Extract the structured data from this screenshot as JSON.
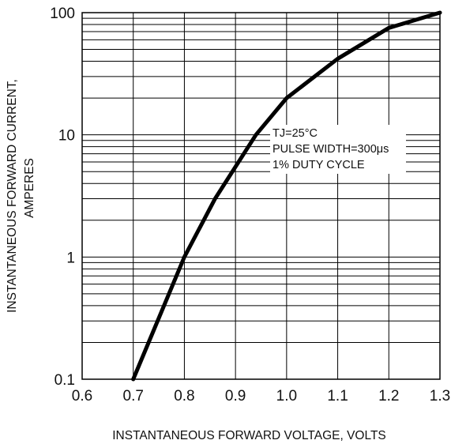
{
  "chart_data": {
    "type": "line",
    "xlabel": "INSTANTANEOUS FORWARD VOLTAGE, VOLTS",
    "ylabel_line1": "INSTANTANEOUS FORWARD CURRENT,",
    "ylabel_line2": "AMPERES",
    "x_scale": "linear",
    "y_scale": "log",
    "xlim": [
      0.6,
      1.3
    ],
    "ylim": [
      0.1,
      100
    ],
    "grid": true,
    "x_ticks": [
      0.6,
      0.7,
      0.8,
      0.9,
      1.0,
      1.1,
      1.2,
      1.3
    ],
    "x_tick_labels": [
      "0.6",
      "0.7",
      "0.8",
      "0.9",
      "1.0",
      "1.1",
      "1.2",
      "1.3"
    ],
    "y_ticks": [
      0.1,
      1,
      10,
      100
    ],
    "y_tick_labels": [
      "0.1",
      "1",
      "10",
      "100"
    ],
    "annotations": [
      "TJ=25°C",
      "PULSE WIDTH=300μs",
      "1% DUTY CYCLE"
    ],
    "series": [
      {
        "x": [
          0.7,
          0.8,
          0.86,
          0.94,
          1.0,
          1.1,
          1.2,
          1.3
        ],
        "y": [
          0.1,
          1.0,
          3.0,
          10.0,
          20.0,
          42.0,
          75.0,
          100.0
        ]
      }
    ]
  }
}
